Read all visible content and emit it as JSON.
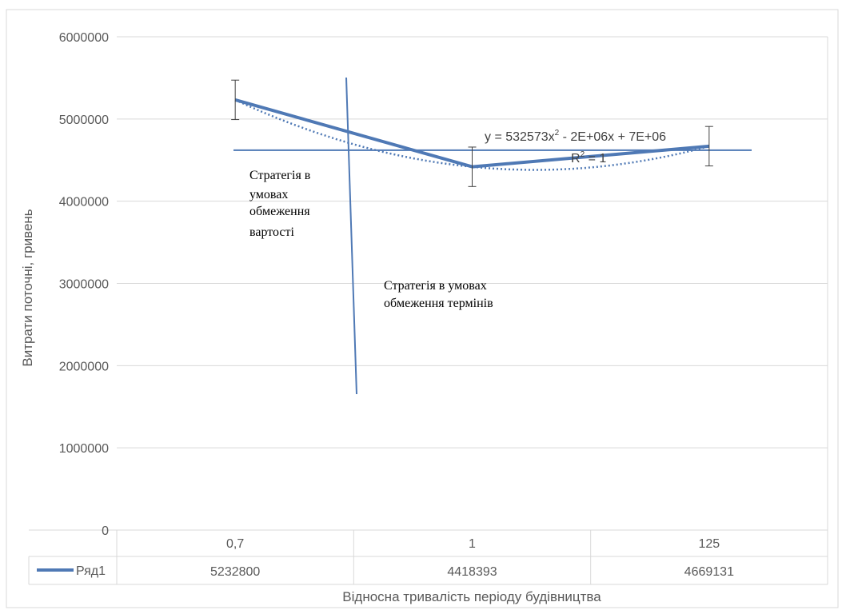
{
  "chart_data": {
    "type": "line",
    "categories": [
      "0,7",
      "1",
      "125"
    ],
    "series": [
      {
        "name": "Ряд1",
        "values": [
          5232800,
          4418393,
          4669131
        ],
        "value_labels": [
          "5232800",
          "4418393",
          "4669131"
        ],
        "color": "#4f79b5"
      }
    ],
    "error_bar": 240000,
    "ylim": [
      0,
      6000000
    ],
    "y_ticks": [
      0,
      1000000,
      2000000,
      3000000,
      4000000,
      5000000,
      6000000
    ],
    "y_tick_labels": [
      "0",
      "1000000",
      "2000000",
      "3000000",
      "4000000",
      "5000000",
      "6000000"
    ],
    "ylabel": "Витрати поточні,  гривень",
    "xlabel": "Відносна  тривалість періоду  будівництва",
    "grid": "horizontal",
    "legend": "data-table",
    "trendline": {
      "type": "polynomial-2",
      "equation_prefix": "y = 532573x",
      "equation_sup": "2",
      "equation_suffix": " - 2E+06x + 7E+06",
      "r2_prefix": "R",
      "r2_sup": "2",
      "r2_suffix": " = 1"
    },
    "reference_line_value": 4620000,
    "annotations": {
      "cost_strategy": [
        "Стратегія в",
        "умовах",
        "обмеження",
        "вартості"
      ],
      "time_strategy": [
        "Стратегія  в умовах",
        "обмеження термінів"
      ]
    }
  }
}
